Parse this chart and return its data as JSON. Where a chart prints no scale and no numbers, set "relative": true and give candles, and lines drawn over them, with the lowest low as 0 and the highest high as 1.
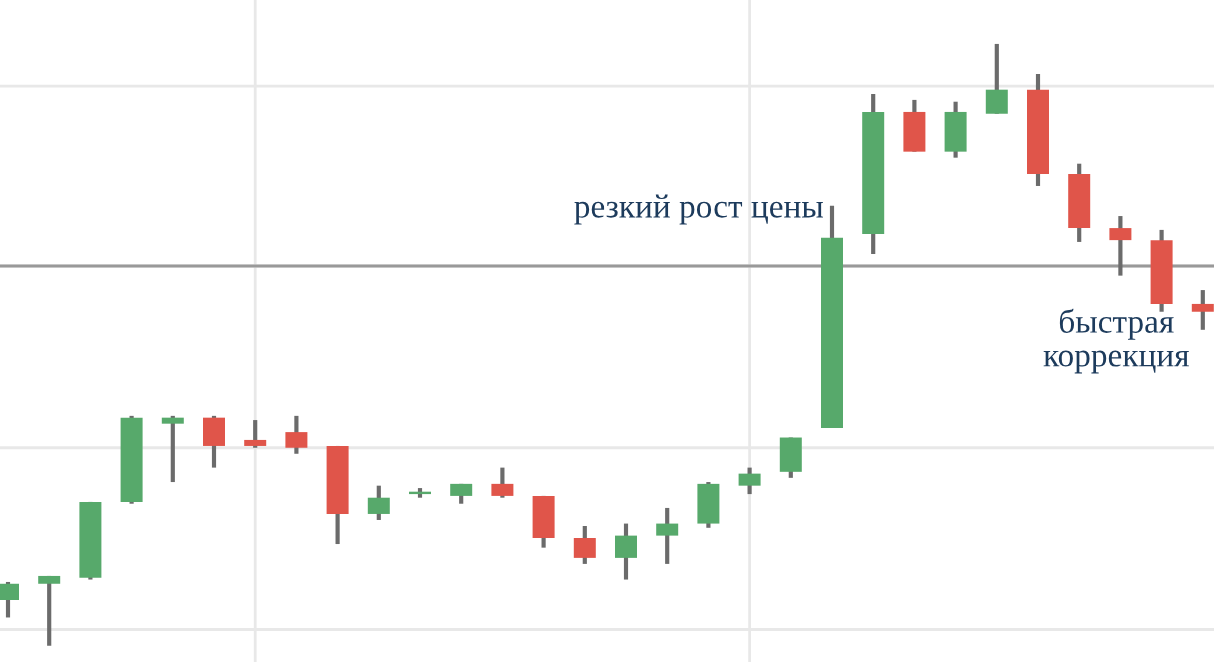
{
  "chart_data": {
    "type": "candlestick",
    "relative": true,
    "grid": true,
    "categories": [
      null,
      null,
      null,
      null,
      null,
      null,
      null,
      null,
      null,
      null,
      null,
      null,
      null,
      null,
      null,
      null,
      null,
      null,
      null,
      null,
      null,
      null,
      null,
      null,
      null,
      null,
      null,
      null,
      null,
      null
    ],
    "ohlc": [
      [
        0.076,
        0.106,
        0.047,
        0.103
      ],
      [
        0.103,
        0.116,
        0,
        0.116
      ],
      [
        0.113,
        0.239,
        0.11,
        0.239
      ],
      [
        0.239,
        0.382,
        0.236,
        0.379
      ],
      [
        0.369,
        0.382,
        0.272,
        0.379
      ],
      [
        0.379,
        0.382,
        0.296,
        0.332
      ],
      [
        0.342,
        0.375,
        0.329,
        0.332
      ],
      [
        0.355,
        0.382,
        0.319,
        0.329
      ],
      [
        0.332,
        0.332,
        0.169,
        0.219
      ],
      [
        0.219,
        0.266,
        0.209,
        0.246
      ],
      [
        0.252,
        0.262,
        0.246,
        0.252
      ],
      [
        0.249,
        0.269,
        0.236,
        0.269
      ],
      [
        0.269,
        0.296,
        0.246,
        0.249
      ],
      [
        0.249,
        0.249,
        0.163,
        0.179
      ],
      [
        0.179,
        0.199,
        0.136,
        0.146
      ],
      [
        0.146,
        0.203,
        0.11,
        0.183
      ],
      [
        0.183,
        0.229,
        0.136,
        0.203
      ],
      [
        0.203,
        0.272,
        0.196,
        0.269
      ],
      [
        0.266,
        0.296,
        0.252,
        0.286
      ],
      [
        0.289,
        0.346,
        0.279,
        0.346
      ],
      [
        0.362,
        0.731,
        0.362,
        0.678
      ],
      [
        0.684,
        0.917,
        0.651,
        0.887
      ],
      [
        0.887,
        0.907,
        0.821,
        0.821
      ],
      [
        0.821,
        0.904,
        0.811,
        0.887
      ],
      [
        0.884,
        1,
        0.884,
        0.924
      ],
      [
        0.924,
        0.95,
        0.764,
        0.784
      ],
      [
        0.784,
        0.801,
        0.671,
        0.694
      ],
      [
        0.694,
        0.714,
        0.615,
        0.674
      ],
      [
        0.674,
        0.691,
        0.555,
        0.568
      ],
      [
        0.568,
        0.591,
        0.525,
        0.555
      ]
    ],
    "colors": [
      "#57a96b",
      "#57a96b",
      "#57a96b",
      "#57a96b",
      "#57a96b",
      "#e0554a",
      "#e0554a",
      "#e0554a",
      "#e0554a",
      "#57a96b",
      "#57a96b",
      "#57a96b",
      "#e0554a",
      "#e0554a",
      "#e0554a",
      "#57a96b",
      "#57a96b",
      "#57a96b",
      "#57a96b",
      "#57a96b",
      "#57a96b",
      "#57a96b",
      "#e0554a",
      "#57a96b",
      "#57a96b",
      "#e0554a",
      "#e0554a",
      "#e0554a",
      "#e0554a",
      "#e0554a"
    ],
    "ref_lines": [
      {
        "axis": "y",
        "value": 0.631,
        "color": "#999999"
      }
    ],
    "annotations": [
      "резкий рост цены",
      "быстрая коррекция"
    ]
  }
}
